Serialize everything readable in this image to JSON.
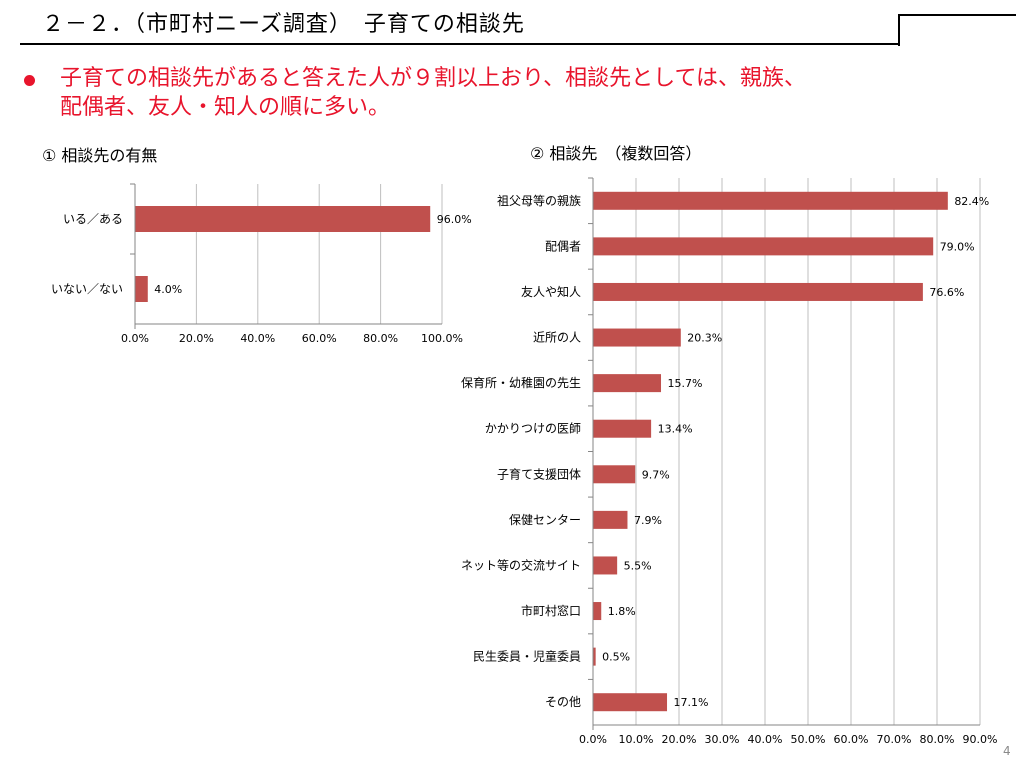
{
  "header": {
    "title": "２－２．（市町村ニーズ調査）　子育ての相談先"
  },
  "bullet": {
    "text": "子育ての相談先があると答えた人が９割以上おり、相談先としては、親族、\n配偶者、友人・知人の順に多い。",
    "color": "#e8142c"
  },
  "page_number": "4",
  "chart_data": [
    {
      "type": "bar",
      "orientation": "horizontal",
      "title": "① 相談先の有無",
      "categories": [
        "いる／ある",
        "いない／ない"
      ],
      "values": [
        96.0,
        4.0
      ],
      "value_labels": [
        "96.0%",
        "4.0%"
      ],
      "xlim": [
        0,
        100
      ],
      "xticks": [
        "0.0%",
        "20.0%",
        "40.0%",
        "60.0%",
        "80.0%",
        "100.0%"
      ],
      "grid": true,
      "bar_color": "#c0504d"
    },
    {
      "type": "bar",
      "orientation": "horizontal",
      "title": "② 相談先　（複数回答）",
      "categories": [
        "祖父母等の親族",
        "配偶者",
        "友人や知人",
        "近所の人",
        "保育所・幼稚園の先生",
        "かかりつけの医師",
        "子育て支援団体",
        "保健センター",
        "ネット等の交流サイト",
        "市町村窓口",
        "民生委員・児童委員",
        "その他"
      ],
      "values": [
        82.4,
        79.0,
        76.6,
        20.3,
        15.7,
        13.4,
        9.7,
        7.9,
        5.5,
        1.8,
        0.5,
        17.1
      ],
      "value_labels": [
        "82.4%",
        "79.0%",
        "76.6%",
        "20.3%",
        "15.7%",
        "13.4%",
        "9.7%",
        "7.9%",
        "5.5%",
        "1.8%",
        "0.5%",
        "17.1%"
      ],
      "xlim": [
        0,
        90
      ],
      "xticks": [
        "0.0%",
        "10.0%",
        "20.0%",
        "30.0%",
        "40.0%",
        "50.0%",
        "60.0%",
        "70.0%",
        "80.0%",
        "90.0%"
      ],
      "grid": true,
      "bar_color": "#c0504d"
    }
  ]
}
